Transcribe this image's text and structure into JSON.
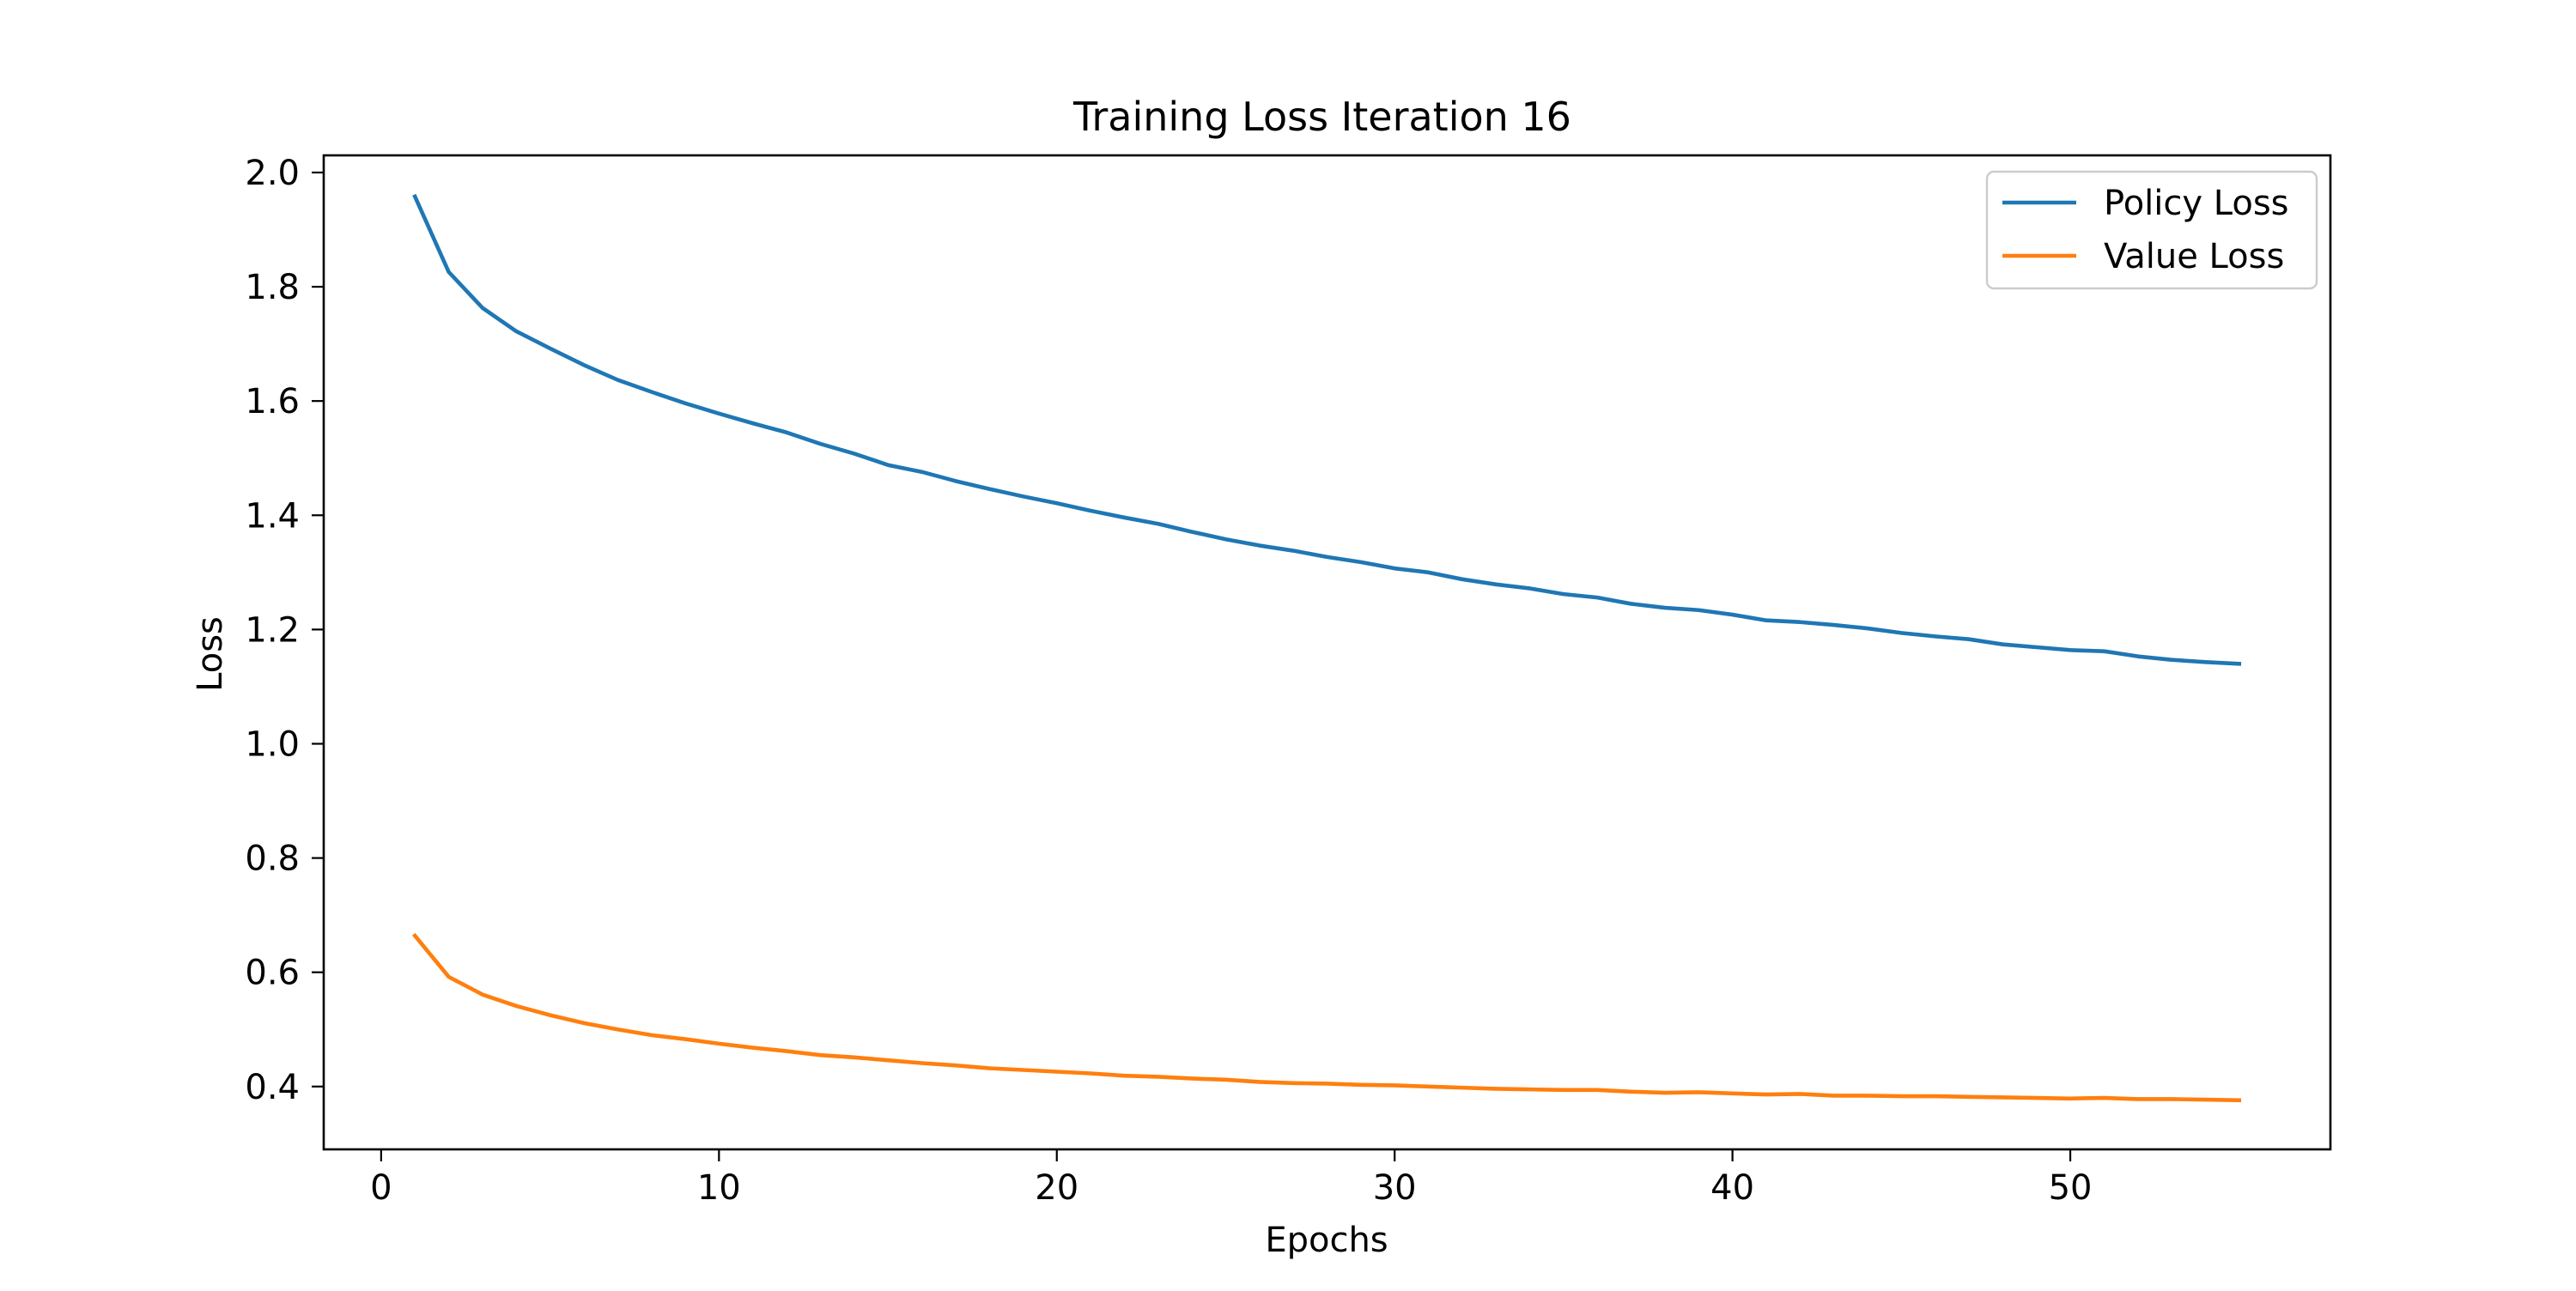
{
  "chart_data": {
    "type": "line",
    "title": "Training Loss Iteration 16",
    "xlabel": "Epochs",
    "ylabel": "Loss",
    "xlim": [
      -1.7,
      57.7
    ],
    "ylim": [
      0.29,
      2.03
    ],
    "xticks": [
      0,
      10,
      20,
      30,
      40,
      50
    ],
    "yticks": [
      0.4,
      0.6,
      0.8,
      1.0,
      1.2,
      1.4,
      1.6,
      1.8,
      2.0
    ],
    "grid": false,
    "legend_position": "top-right",
    "x": [
      1,
      2,
      3,
      4,
      5,
      6,
      7,
      8,
      9,
      10,
      11,
      12,
      13,
      14,
      15,
      16,
      17,
      18,
      19,
      20,
      21,
      22,
      23,
      24,
      25,
      26,
      27,
      28,
      29,
      30,
      31,
      32,
      33,
      34,
      35,
      36,
      37,
      38,
      39,
      40,
      41,
      42,
      43,
      44,
      45,
      46,
      47,
      48,
      49,
      50,
      51,
      52,
      53,
      54,
      55
    ],
    "series": [
      {
        "name": "Policy Loss",
        "color": "#1f77b4",
        "values": [
          1.958,
          1.826,
          1.763,
          1.722,
          1.692,
          1.663,
          1.637,
          1.616,
          1.596,
          1.578,
          1.561,
          1.545,
          1.525,
          1.508,
          1.488,
          1.476,
          1.46,
          1.446,
          1.433,
          1.421,
          1.408,
          1.396,
          1.385,
          1.371,
          1.358,
          1.347,
          1.338,
          1.327,
          1.318,
          1.307,
          1.3,
          1.288,
          1.279,
          1.272,
          1.262,
          1.256,
          1.245,
          1.238,
          1.234,
          1.226,
          1.216,
          1.213,
          1.208,
          1.202,
          1.194,
          1.188,
          1.183,
          1.174,
          1.169,
          1.164,
          1.162,
          1.153,
          1.147,
          1.143,
          1.14
        ]
      },
      {
        "name": "Value Loss",
        "color": "#ff7f0e",
        "values": [
          0.664,
          0.592,
          0.561,
          0.541,
          0.525,
          0.511,
          0.5,
          0.49,
          0.483,
          0.475,
          0.468,
          0.462,
          0.455,
          0.451,
          0.446,
          0.441,
          0.437,
          0.432,
          0.429,
          0.426,
          0.423,
          0.419,
          0.417,
          0.414,
          0.412,
          0.408,
          0.406,
          0.405,
          0.403,
          0.402,
          0.4,
          0.398,
          0.396,
          0.395,
          0.394,
          0.394,
          0.391,
          0.389,
          0.39,
          0.388,
          0.386,
          0.387,
          0.384,
          0.384,
          0.383,
          0.383,
          0.382,
          0.381,
          0.38,
          0.379,
          0.38,
          0.378,
          0.378,
          0.377,
          0.376
        ]
      }
    ]
  }
}
